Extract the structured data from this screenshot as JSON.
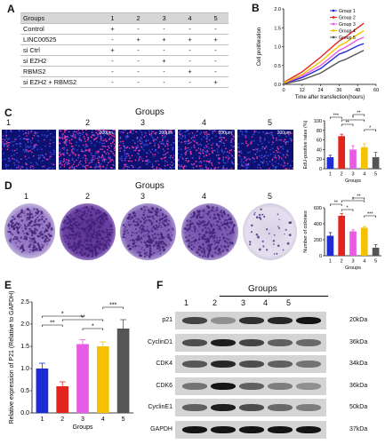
{
  "panels": {
    "A": "A",
    "B": "B",
    "C": "C",
    "D": "D",
    "E": "E",
    "F": "F"
  },
  "table": {
    "header": [
      "Groups",
      "1",
      "2",
      "3",
      "4",
      "5"
    ],
    "rows": [
      {
        "label": "Control",
        "cells": [
          "+",
          "-",
          "-",
          "-",
          "-"
        ]
      },
      {
        "label": "LINC00525",
        "cells": [
          "-",
          "+",
          "+",
          "+",
          "+"
        ]
      },
      {
        "label": "si Ctrl",
        "cells": [
          "+",
          "-",
          "-",
          "-",
          "-"
        ]
      },
      {
        "label": "si EZH2",
        "cells": [
          "-",
          "-",
          "+",
          "-",
          "-"
        ]
      },
      {
        "label": "RBMS2",
        "cells": [
          "-",
          "-",
          "-",
          "+",
          "-"
        ]
      },
      {
        "label": "si EZH2 + RBMS2",
        "cells": [
          "-",
          "-",
          "-",
          "-",
          "+"
        ]
      }
    ]
  },
  "groups_title": "Groups",
  "group_numbers": [
    "1",
    "2",
    "3",
    "4",
    "5"
  ],
  "scale_bar": "200μm",
  "colors": {
    "g1": "#1f2bd6",
    "g2": "#e3241c",
    "g3": "#e85be4",
    "g4": "#f4c200",
    "g5": "#555555",
    "fluor_bg": "#0d1272",
    "crystal_violet": "#6a3fa3"
  },
  "chart_data": [
    {
      "panel": "B",
      "type": "line",
      "xlabel": "Time after transfection(hours)",
      "ylabel": "Cell proliferation",
      "xlim": [
        0,
        60
      ],
      "ylim": [
        0,
        2.0
      ],
      "xticks": [
        "0",
        "12",
        "24",
        "36",
        "48",
        "60"
      ],
      "yticks": [
        "0.0",
        "0.5",
        "1.0",
        "1.5",
        "2.0"
      ],
      "series": [
        {
          "name": "Group 1",
          "x": [
            0,
            12,
            24,
            36,
            40,
            48,
            52
          ],
          "y": [
            0.02,
            0.18,
            0.42,
            0.8,
            0.86,
            1.02,
            1.08
          ]
        },
        {
          "name": "Group 2",
          "x": [
            0,
            12,
            24,
            36,
            40,
            48,
            52
          ],
          "y": [
            0.05,
            0.33,
            0.72,
            1.15,
            1.25,
            1.5,
            1.62
          ]
        },
        {
          "name": "Group 3",
          "x": [
            0,
            12,
            24,
            36,
            40,
            48,
            52
          ],
          "y": [
            0.03,
            0.22,
            0.5,
            0.9,
            0.98,
            1.18,
            1.25
          ]
        },
        {
          "name": "Group 4",
          "x": [
            0,
            12,
            24,
            36,
            40,
            48,
            52
          ],
          "y": [
            0.04,
            0.26,
            0.6,
            1.02,
            1.1,
            1.32,
            1.42
          ]
        },
        {
          "name": "Group 5",
          "x": [
            0,
            12,
            24,
            36,
            40,
            48,
            52
          ],
          "y": [
            0.01,
            0.12,
            0.3,
            0.6,
            0.66,
            0.82,
            0.9
          ]
        }
      ]
    },
    {
      "panel": "C",
      "type": "bar",
      "xlabel": "Groups",
      "ylabel": "EdU-positive rates (%)",
      "categories": [
        "1",
        "2",
        "3",
        "4",
        "5"
      ],
      "values": [
        24,
        68,
        40,
        45,
        24
      ],
      "errors": [
        4,
        4,
        8,
        7,
        10
      ],
      "ylim": [
        0,
        100
      ],
      "yticks": [
        "0",
        "20",
        "40",
        "60",
        "80",
        "100"
      ],
      "significance": [
        "***",
        "**",
        "*",
        "**",
        "*"
      ]
    },
    {
      "panel": "D",
      "type": "bar",
      "xlabel": "Groups",
      "ylabel": "Number of colonies",
      "categories": [
        "1",
        "2",
        "3",
        "4",
        "5"
      ],
      "values": [
        250,
        500,
        305,
        350,
        100
      ],
      "errors": [
        40,
        30,
        20,
        15,
        40
      ],
      "ylim": [
        0,
        600
      ],
      "yticks": [
        "0",
        "200",
        "400",
        "600"
      ],
      "significance": [
        "**",
        "*",
        "*",
        "**",
        "***"
      ]
    },
    {
      "panel": "E",
      "type": "bar",
      "xlabel": "Groups",
      "ylabel": "Relative expression of P21 (Relative to GAPDH)",
      "categories": [
        "1",
        "2",
        "3",
        "4",
        "5"
      ],
      "values": [
        1.0,
        0.6,
        1.55,
        1.5,
        1.9
      ],
      "errors": [
        0.12,
        0.1,
        0.1,
        0.1,
        0.2
      ],
      "ylim": [
        0,
        2.5
      ],
      "yticks": [
        "0.0",
        "0.5",
        "1.0",
        "1.5",
        "2.0",
        "2.5"
      ],
      "significance": [
        "**",
        "*",
        "**",
        "*",
        "***"
      ]
    }
  ],
  "blot": {
    "title": "Groups",
    "rows": [
      {
        "label": "p21",
        "kda": "20kDa",
        "intensity": [
          0.75,
          0.35,
          0.85,
          0.9,
          1.0
        ]
      },
      {
        "label": "CyclinD1",
        "kda": "36kDa",
        "intensity": [
          0.7,
          0.95,
          0.75,
          0.6,
          0.55
        ]
      },
      {
        "label": "CDK4",
        "kda": "34kDa",
        "intensity": [
          0.65,
          0.9,
          0.7,
          0.6,
          0.5
        ]
      },
      {
        "label": "CDK6",
        "kda": "36kDa",
        "intensity": [
          0.5,
          1.0,
          0.6,
          0.45,
          0.35
        ]
      },
      {
        "label": "CyclinE1",
        "kda": "50kDa",
        "intensity": [
          0.6,
          0.95,
          0.7,
          0.55,
          0.45
        ]
      },
      {
        "label": "GAPDH",
        "kda": "37kDa",
        "intensity": [
          1.0,
          1.0,
          1.0,
          1.0,
          1.0
        ]
      }
    ]
  }
}
